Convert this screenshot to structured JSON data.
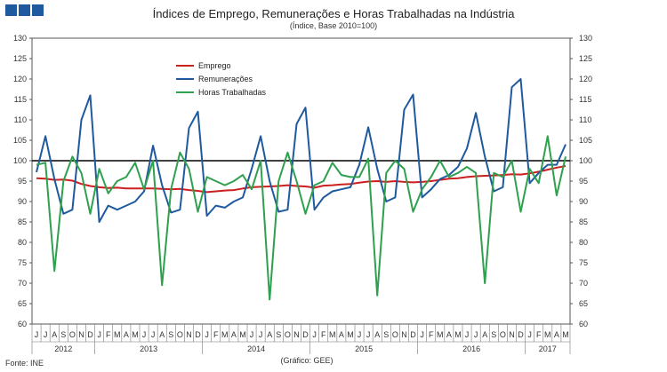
{
  "header": {
    "title": "Índices de Emprego, Remunerações e Horas Trabalhadas na Indústria",
    "subtitle": "(Índice, Base 2010=100)"
  },
  "footer": {
    "source": "Fonte: INE",
    "credit": "(Gráfico: GEE)"
  },
  "logo": {
    "icon": "three-blue-squares-logo-icon",
    "color": "#1f5a9e"
  },
  "chart_data": {
    "type": "line",
    "title": "Índices de Emprego, Remunerações e Horas Trabalhadas na Indústria",
    "subtitle": "(Índice, Base 2010=100)",
    "ylim": [
      60,
      130
    ],
    "yticks": [
      60,
      65,
      70,
      75,
      80,
      85,
      90,
      95,
      100,
      105,
      110,
      115,
      120,
      125,
      130
    ],
    "y_axes": "left-and-right",
    "grid": false,
    "reference_line": 100,
    "legend_position": "top-left",
    "months": [
      "J",
      "J",
      "A",
      "S",
      "O",
      "N",
      "D",
      "J",
      "F",
      "M",
      "A",
      "M",
      "J",
      "J",
      "A",
      "S",
      "O",
      "N",
      "D",
      "J",
      "F",
      "M",
      "A",
      "M",
      "J",
      "J",
      "A",
      "S",
      "O",
      "N",
      "D",
      "J",
      "F",
      "M",
      "A",
      "M",
      "J",
      "J",
      "A",
      "S",
      "O",
      "N",
      "D",
      "J",
      "F",
      "M",
      "A",
      "M",
      "J",
      "J",
      "A",
      "S",
      "O",
      "N",
      "D",
      "J",
      "F",
      "M",
      "A",
      "M"
    ],
    "years": [
      {
        "label": "2012",
        "months": 7
      },
      {
        "label": "2013",
        "months": 12
      },
      {
        "label": "2014",
        "months": 12
      },
      {
        "label": "2015",
        "months": 12
      },
      {
        "label": "2016",
        "months": 12
      },
      {
        "label": "2017",
        "months": 5
      }
    ],
    "series": [
      {
        "name": "Emprego",
        "color": "#cc1f1f",
        "values": [
          95.7,
          95.6,
          95.3,
          95.4,
          95.1,
          94.3,
          93.8,
          93.5,
          93.3,
          93.4,
          93.2,
          93.2,
          93.2,
          93.2,
          93.1,
          93.0,
          93.1,
          92.8,
          92.6,
          92.3,
          92.5,
          92.7,
          92.8,
          93.2,
          93.5,
          93.6,
          93.7,
          93.8,
          94.0,
          93.8,
          93.7,
          93.4,
          93.9,
          94.0,
          94.2,
          94.3,
          94.6,
          94.9,
          95.0,
          94.8,
          95.0,
          94.8,
          94.7,
          94.8,
          95.0,
          95.3,
          95.6,
          95.7,
          96.0,
          96.2,
          96.3,
          96.4,
          96.5,
          96.7,
          96.6,
          96.9,
          97.3,
          97.8,
          98.3,
          98.7
        ]
      },
      {
        "name": "Remunerações",
        "color": "#1f5a9e",
        "values": [
          97.2,
          106.0,
          95.5,
          87.0,
          88.0,
          110.0,
          116.0,
          85.0,
          89.0,
          88.0,
          89.0,
          90.0,
          92.5,
          103.7,
          94.0,
          87.3,
          88.0,
          108.0,
          112.0,
          86.5,
          89.0,
          88.5,
          90.0,
          91.0,
          98.0,
          106.0,
          95.0,
          87.5,
          88.0,
          109.0,
          113.0,
          88.0,
          91.0,
          92.5,
          93.0,
          93.5,
          99.0,
          108.2,
          98.0,
          90.0,
          91.0,
          112.5,
          116.2,
          91.0,
          93.0,
          95.5,
          96.5,
          98.5,
          103.0,
          111.7,
          101.0,
          92.5,
          93.5,
          118.0,
          120.0,
          94.5,
          97.0,
          99.0,
          99.0,
          104.0
        ]
      },
      {
        "name": "Horas Trabalhadas",
        "color": "#2fa04e",
        "values": [
          99.0,
          99.5,
          73.0,
          95.0,
          101.0,
          97.0,
          87.0,
          98.0,
          92.0,
          95.0,
          96.0,
          99.5,
          93.0,
          100.0,
          69.5,
          93.0,
          102.0,
          98.0,
          87.5,
          96.0,
          95.0,
          94.0,
          95.0,
          96.5,
          93.0,
          100.0,
          66.0,
          95.0,
          102.0,
          95.0,
          87.0,
          94.0,
          95.0,
          99.5,
          96.5,
          96.0,
          96.0,
          100.5,
          67.0,
          97.0,
          100.0,
          98.0,
          87.5,
          93.0,
          96.0,
          100.0,
          96.0,
          97.0,
          98.5,
          97.0,
          70.0,
          97.0,
          96.0,
          100.0,
          87.5,
          98.0,
          94.5,
          106.0,
          91.5,
          101.0
        ]
      }
    ]
  }
}
